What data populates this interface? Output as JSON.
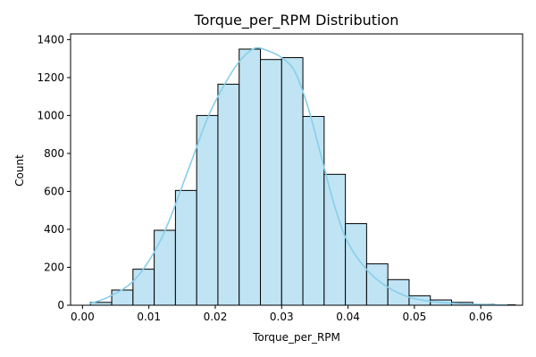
{
  "chart_data": {
    "type": "bar",
    "title": "Torque_per_RPM Distribution",
    "xlabel": "Torque_per_RPM",
    "ylabel": "Count",
    "xlim": [
      -0.0018,
      0.0663
    ],
    "ylim": [
      0,
      1430
    ],
    "x_ticks": [
      0.0,
      0.01,
      0.02,
      0.03,
      0.04,
      0.05,
      0.06
    ],
    "x_tick_labels": [
      "0.00",
      "0.01",
      "0.02",
      "0.03",
      "0.04",
      "0.05",
      "0.06"
    ],
    "y_ticks": [
      0,
      200,
      400,
      600,
      800,
      1000,
      1200,
      1400
    ],
    "y_tick_labels": [
      "0",
      "200",
      "400",
      "600",
      "800",
      "1000",
      "1200",
      "1400"
    ],
    "bin_edges": [
      0.0012,
      0.0044,
      0.0076,
      0.0108,
      0.014,
      0.0172,
      0.0204,
      0.0236,
      0.0268,
      0.03,
      0.0332,
      0.0364,
      0.0396,
      0.0428,
      0.046,
      0.0492,
      0.0524,
      0.0556,
      0.0588,
      0.062,
      0.0652
    ],
    "counts": [
      15,
      80,
      190,
      395,
      605,
      1000,
      1165,
      1350,
      1295,
      1305,
      995,
      690,
      430,
      218,
      135,
      50,
      28,
      15,
      5,
      2
    ],
    "kde": {
      "x": [
        0.001,
        0.004,
        0.008,
        0.012,
        0.016,
        0.019,
        0.022,
        0.024,
        0.026,
        0.028,
        0.03,
        0.032,
        0.034,
        0.036,
        0.038,
        0.04,
        0.043,
        0.046,
        0.049,
        0.052,
        0.055,
        0.058,
        0.061,
        0.064
      ],
      "y": [
        8,
        45,
        140,
        360,
        720,
        1000,
        1200,
        1300,
        1355,
        1340,
        1305,
        1230,
        1040,
        780,
        520,
        330,
        180,
        95,
        45,
        22,
        12,
        6,
        3,
        1
      ]
    },
    "bar_fill": "#c0e4f3",
    "bar_edge": "#000000",
    "kde_color": "#87ceeb",
    "grid": false,
    "legend": "none"
  }
}
